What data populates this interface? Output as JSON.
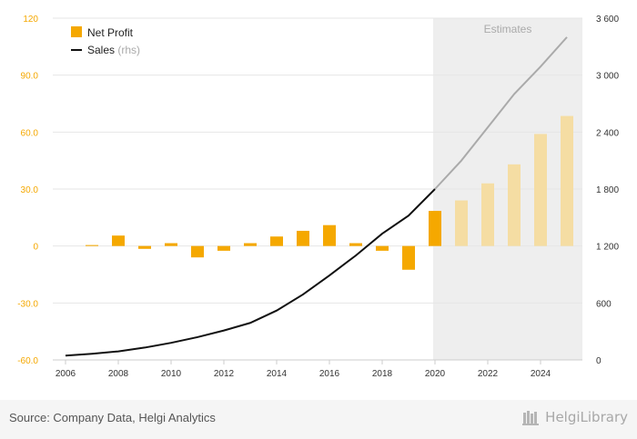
{
  "chart_data": {
    "type": "bar",
    "x": [
      2006,
      2007,
      2008,
      2009,
      2010,
      2011,
      2012,
      2013,
      2014,
      2015,
      2016,
      2017,
      2018,
      2019,
      2020,
      2021,
      2022,
      2023,
      2024,
      2025
    ],
    "x_tick_labels": [
      "2006",
      "2008",
      "2010",
      "2012",
      "2014",
      "2016",
      "2018",
      "2020",
      "2022",
      "2024"
    ],
    "series": [
      {
        "name": "Net Profit",
        "kind": "bar",
        "axis": "left",
        "color": "#f5a800",
        "values": [
          0.0,
          0.5,
          5.5,
          -1.5,
          1.5,
          -6.0,
          -2.5,
          1.5,
          5.0,
          8.0,
          11.0,
          1.5,
          -2.5,
          -12.5,
          18.5,
          24.0,
          33.0,
          43.0,
          59.0,
          68.5
        ]
      },
      {
        "name": "Sales",
        "name_suffix": "(rhs)",
        "kind": "line",
        "axis": "right",
        "color": "#111111",
        "values": [
          45,
          65,
          90,
          130,
          180,
          240,
          310,
          390,
          520,
          690,
          890,
          1100,
          1330,
          1520,
          1800,
          2100,
          2450,
          2800,
          3090,
          3400
        ]
      }
    ],
    "estimates": {
      "label": "Estimates",
      "start_year": 2020,
      "estimate_bar_color": "#f5dda3",
      "estimate_line_color": "#aaaaaa",
      "shade_color": "#eeeeee"
    },
    "y_left": {
      "min": -60,
      "max": 120,
      "ticks": [
        -60,
        -30,
        0,
        30,
        60,
        90,
        120
      ],
      "tick_labels": [
        "-60.0",
        "-30.0",
        "0",
        "30.0",
        "60.0",
        "90.0",
        "120"
      ],
      "color": "#f5a800"
    },
    "y_right": {
      "min": 0,
      "max": 3600,
      "ticks": [
        0,
        600,
        1200,
        1800,
        2400,
        3000,
        3600
      ],
      "tick_labels": [
        "0",
        "600",
        "1 200",
        "1 800",
        "2 400",
        "3 000",
        "3 600"
      ]
    },
    "grid": true,
    "legend_placement": "top-left"
  },
  "footer": {
    "source": "Source: Company Data, Helgi Analytics",
    "logo_text": "HelgiLibrary"
  }
}
